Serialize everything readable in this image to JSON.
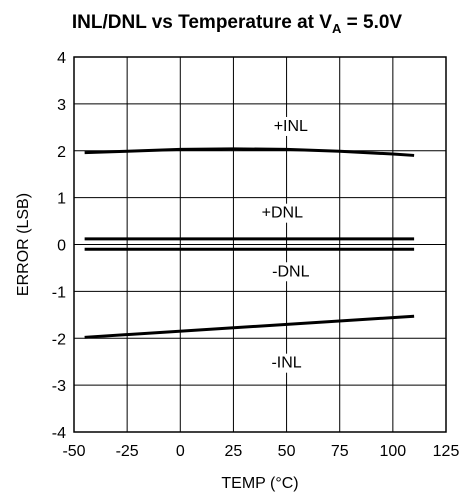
{
  "chart_data": {
    "type": "line",
    "title": {
      "main": "INL/DNL vs Temperature at V",
      "subscript": "A",
      "suffix": " = 5.0V"
    },
    "xlabel": "TEMP (°C)",
    "ylabel": "ERROR (LSB)",
    "xlim": [
      -50,
      125
    ],
    "ylim": [
      -4,
      4
    ],
    "x_ticks": [
      "-50",
      "-25",
      "0",
      "25",
      "50",
      "75",
      "100",
      "125"
    ],
    "y_ticks": [
      "4",
      "3",
      "2",
      "1",
      "0",
      "-1",
      "-2",
      "-3",
      "-4"
    ],
    "grid": true,
    "series": [
      {
        "name": "+INL",
        "x": [
          -45,
          -25,
          0,
          25,
          50,
          75,
          100,
          110
        ],
        "y": [
          1.96,
          1.99,
          2.03,
          2.04,
          2.03,
          1.99,
          1.93,
          1.9
        ]
      },
      {
        "name": "+DNL",
        "x": [
          -45,
          110
        ],
        "y": [
          0.12,
          0.12
        ]
      },
      {
        "name": "-DNL",
        "x": [
          -45,
          110
        ],
        "y": [
          -0.1,
          -0.1
        ]
      },
      {
        "name": "-INL",
        "x": [
          -45,
          110
        ],
        "y": [
          -1.98,
          -1.53
        ]
      }
    ],
    "annotations": [
      {
        "text": "+INL",
        "x": 52,
        "y": 2.55
      },
      {
        "text": "+DNL",
        "x": 48,
        "y": 0.7
      },
      {
        "text": "-DNL",
        "x": 52,
        "y": -0.55
      },
      {
        "text": "-INL",
        "x": 50,
        "y": -2.5
      }
    ]
  }
}
